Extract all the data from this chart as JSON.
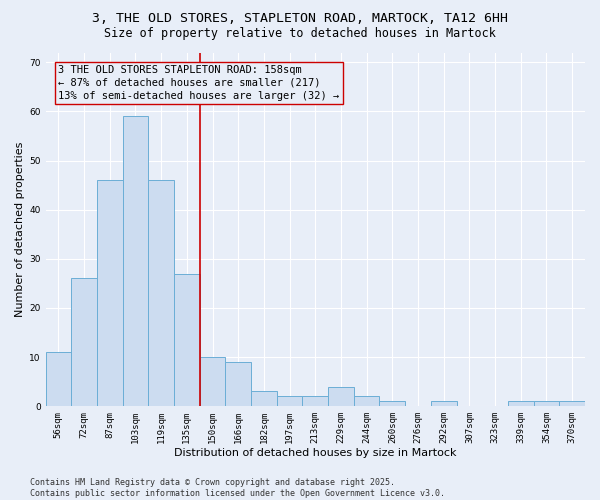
{
  "title_line1": "3, THE OLD STORES, STAPLETON ROAD, MARTOCK, TA12 6HH",
  "title_line2": "Size of property relative to detached houses in Martock",
  "xlabel": "Distribution of detached houses by size in Martock",
  "ylabel": "Number of detached properties",
  "categories": [
    "56sqm",
    "72sqm",
    "87sqm",
    "103sqm",
    "119sqm",
    "135sqm",
    "150sqm",
    "166sqm",
    "182sqm",
    "197sqm",
    "213sqm",
    "229sqm",
    "244sqm",
    "260sqm",
    "276sqm",
    "292sqm",
    "307sqm",
    "323sqm",
    "339sqm",
    "354sqm",
    "370sqm"
  ],
  "values": [
    11,
    26,
    46,
    59,
    46,
    27,
    10,
    9,
    3,
    2,
    2,
    4,
    2,
    1,
    0,
    1,
    0,
    0,
    1,
    1,
    1
  ],
  "bar_color": "#ccdcf0",
  "bar_edge_color": "#6baed6",
  "vline_x": 6.0,
  "vline_color": "#cc0000",
  "annotation_text": "3 THE OLD STORES STAPLETON ROAD: 158sqm\n← 87% of detached houses are smaller (217)\n13% of semi-detached houses are larger (32) →",
  "annotation_box_edge": "#cc0000",
  "ylim": [
    0,
    72
  ],
  "yticks": [
    0,
    10,
    20,
    30,
    40,
    50,
    60,
    70
  ],
  "footer": "Contains HM Land Registry data © Crown copyright and database right 2025.\nContains public sector information licensed under the Open Government Licence v3.0.",
  "bg_color": "#e8eef8",
  "plot_bg_color": "#e8eef8",
  "grid_color": "#ffffff",
  "title_fontsize": 9.5,
  "subtitle_fontsize": 8.5,
  "axis_label_fontsize": 8,
  "tick_fontsize": 6.5,
  "footer_fontsize": 6,
  "annotation_fontsize": 7.5
}
